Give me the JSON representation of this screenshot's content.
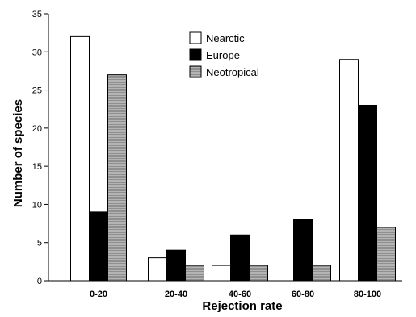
{
  "chart_data": {
    "type": "bar",
    "categories": [
      "0-20",
      "20-40",
      "40-60",
      "60-80",
      "80-100"
    ],
    "series": [
      {
        "name": "Nearctic",
        "values": [
          32,
          3,
          2,
          0,
          29
        ],
        "color": "#ffffff"
      },
      {
        "name": "Europe",
        "values": [
          9,
          4,
          6,
          8,
          23
        ],
        "color": "#000000"
      },
      {
        "name": "Neotropical",
        "values": [
          27,
          2,
          2,
          2,
          7
        ],
        "color": "#a8a8a8"
      }
    ],
    "title": "",
    "xlabel": "Rejection rate",
    "ylabel": "Number of species",
    "ylim": [
      0,
      35
    ],
    "yticks": [
      0,
      5,
      10,
      15,
      20,
      25,
      30,
      35
    ],
    "grid": false,
    "legend_position": "top-center"
  }
}
